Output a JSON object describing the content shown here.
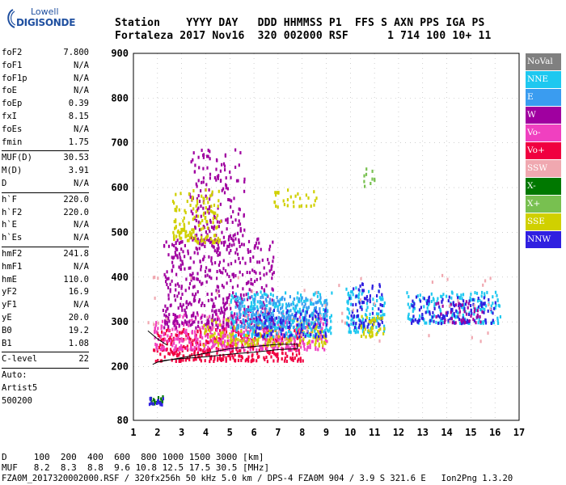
{
  "logo": {
    "top": "Lowell",
    "main": "DIGISONDE"
  },
  "header": {
    "line1": "Station    YYYY DAY   DDD HHMMSS P1  FFS S AXN PPS IGA PS",
    "line2": "Fortaleza 2017 Nov16  320 002000 RSF      1 714 100 10+ 11"
  },
  "params": {
    "g1": [
      {
        "label": "foF2",
        "value": "7.800"
      },
      {
        "label": "foF1",
        "value": "N/A"
      },
      {
        "label": "foF1p",
        "value": "N/A"
      },
      {
        "label": "foE",
        "value": "N/A"
      },
      {
        "label": "foEp",
        "value": "0.39"
      },
      {
        "label": "fxI",
        "value": "8.15"
      },
      {
        "label": "foEs",
        "value": "N/A"
      },
      {
        "label": "fmin",
        "value": "1.75"
      }
    ],
    "g2": [
      {
        "label": "MUF(D)",
        "value": "30.53"
      },
      {
        "label": "M(D)",
        "value": "3.91"
      },
      {
        "label": "D",
        "value": "N/A"
      }
    ],
    "g3": [
      {
        "label": "h`F",
        "value": "220.0"
      },
      {
        "label": "h`F2",
        "value": "220.0"
      },
      {
        "label": "h`E",
        "value": "N/A"
      },
      {
        "label": "h`Es",
        "value": "N/A"
      }
    ],
    "g4": [
      {
        "label": "hmF2",
        "value": "241.8"
      },
      {
        "label": "hmF1",
        "value": "N/A"
      },
      {
        "label": "hmE",
        "value": "110.0"
      },
      {
        "label": "yF2",
        "value": "16.9"
      },
      {
        "label": "yF1",
        "value": "N/A"
      },
      {
        "label": "yE",
        "value": "20.0"
      },
      {
        "label": "B0",
        "value": "19.2"
      },
      {
        "label": "B1",
        "value": "1.08"
      }
    ],
    "g5": [
      {
        "label": "C-level",
        "value": "22"
      }
    ]
  },
  "auto": {
    "l1": "Auto:",
    "l2": "Artist5",
    "l3": "500200"
  },
  "legend": [
    {
      "label": "NoVal",
      "color": "#808080"
    },
    {
      "label": "NNE",
      "color": "#1ec8f0"
    },
    {
      "label": "E",
      "color": "#3a9cf0"
    },
    {
      "label": "W",
      "color": "#a000a0"
    },
    {
      "label": "Vo-",
      "color": "#f040c0"
    },
    {
      "label": "Vo+",
      "color": "#f00040"
    },
    {
      "label": "SSW",
      "color": "#f0a8b0"
    },
    {
      "label": "X-",
      "color": "#007800"
    },
    {
      "label": "X+",
      "color": "#78c050"
    },
    {
      "label": "SSE",
      "color": "#d0d000"
    },
    {
      "label": "NNW",
      "color": "#3020e0"
    }
  ],
  "footer": {
    "line1": "D     100  200  400  600  800 1000 1500 3000 [km]",
    "line2": "MUF   8.2  8.3  8.8  9.6 10.8 12.5 17.5 30.5 [MHz]",
    "line3": "FZA0M_2017320002000.RSF / 320fx256h 50 kHz 5.0 km / DPS-4 FZA0M 904 / 3.9 S 321.6 E   Ion2Png 1.3.20"
  },
  "chart_data": {
    "type": "scatter",
    "title": "",
    "xlabel": "",
    "ylabel": "",
    "xlim": [
      1,
      17
    ],
    "ylim": [
      80,
      900
    ],
    "x_ticks": [
      1,
      2,
      3,
      4,
      5,
      6,
      7,
      8,
      9,
      10,
      11,
      12,
      13,
      14,
      15,
      16,
      17
    ],
    "y_ticks": [
      80,
      200,
      300,
      400,
      500,
      600,
      700,
      800,
      900
    ],
    "grid": true,
    "clusters": [
      {
        "name": "Vo+",
        "color": "#f00040",
        "x": [
          1.8,
          8.0
        ],
        "y": [
          215,
          290
        ],
        "n": 420
      },
      {
        "name": "Vo-",
        "color": "#f040c0",
        "x": [
          1.8,
          9.0
        ],
        "y": [
          240,
          320
        ],
        "n": 420
      },
      {
        "name": "W",
        "color": "#a000a0",
        "x": [
          2.2,
          6.8
        ],
        "y": [
          290,
          490
        ],
        "n": 520
      },
      {
        "name": "W",
        "color": "#a000a0",
        "x": [
          3.3,
          5.6
        ],
        "y": [
          480,
          690
        ],
        "n": 180
      },
      {
        "name": "SSE",
        "color": "#d0d000",
        "x": [
          2.6,
          4.6
        ],
        "y": [
          480,
          600
        ],
        "n": 140
      },
      {
        "name": "SSE",
        "color": "#d0d000",
        "x": [
          3.8,
          9.0
        ],
        "y": [
          250,
          310
        ],
        "n": 160
      },
      {
        "name": "NNE",
        "color": "#1ec8f0",
        "x": [
          5.0,
          9.2
        ],
        "y": [
          270,
          370
        ],
        "n": 260
      },
      {
        "name": "E",
        "color": "#3a9cf0",
        "x": [
          5.2,
          9.0
        ],
        "y": [
          290,
          360
        ],
        "n": 200
      },
      {
        "name": "NNW",
        "color": "#3020e0",
        "x": [
          6.0,
          9.0
        ],
        "y": [
          270,
          330
        ],
        "n": 100
      },
      {
        "name": "NNE",
        "color": "#1ec8f0",
        "x": [
          9.8,
          11.4
        ],
        "y": [
          280,
          380
        ],
        "n": 110
      },
      {
        "name": "NNW",
        "color": "#3020e0",
        "x": [
          9.9,
          11.3
        ],
        "y": [
          290,
          390
        ],
        "n": 70
      },
      {
        "name": "SSE",
        "color": "#d0d000",
        "x": [
          10.4,
          11.4
        ],
        "y": [
          270,
          320
        ],
        "n": 40
      },
      {
        "name": "NNE",
        "color": "#1ec8f0",
        "x": [
          12.3,
          16.2
        ],
        "y": [
          300,
          370
        ],
        "n": 160
      },
      {
        "name": "NNW",
        "color": "#3020e0",
        "x": [
          12.5,
          16.0
        ],
        "y": [
          300,
          360
        ],
        "n": 120
      },
      {
        "name": "W",
        "color": "#a000a0",
        "x": [
          13.5,
          15.5
        ],
        "y": [
          300,
          350
        ],
        "n": 40
      },
      {
        "name": "SSW",
        "color": "#f0a8b0",
        "x": [
          1.5,
          16.0
        ],
        "y": [
          260,
          420
        ],
        "n": 60
      },
      {
        "name": "X-",
        "color": "#007800",
        "x": [
          1.6,
          2.2
        ],
        "y": [
          120,
          140
        ],
        "n": 16
      },
      {
        "name": "NNW",
        "color": "#3020e0",
        "x": [
          1.6,
          2.2
        ],
        "y": [
          118,
          135
        ],
        "n": 16
      },
      {
        "name": "SSE",
        "color": "#d0d000",
        "x": [
          6.8,
          8.6
        ],
        "y": [
          560,
          600
        ],
        "n": 30
      },
      {
        "name": "X+",
        "color": "#78c050",
        "x": [
          10.5,
          11.0
        ],
        "y": [
          600,
          660
        ],
        "n": 10
      }
    ],
    "trace": {
      "x": [
        1.8,
        2.0,
        2.5,
        3.0,
        4.0,
        5.0,
        6.0,
        7.0,
        7.8,
        7.8,
        7.0,
        6.0,
        5.0,
        4.0,
        3.0,
        2.3,
        2.0,
        1.8
      ],
      "y": [
        205,
        210,
        215,
        220,
        230,
        240,
        245,
        250,
        250,
        240,
        238,
        232,
        228,
        222,
        218,
        214,
        210,
        205
      ],
      "lobe_x": [
        1.6,
        2.0,
        2.4
      ],
      "lobe_y": [
        280,
        262,
        248
      ]
    }
  }
}
